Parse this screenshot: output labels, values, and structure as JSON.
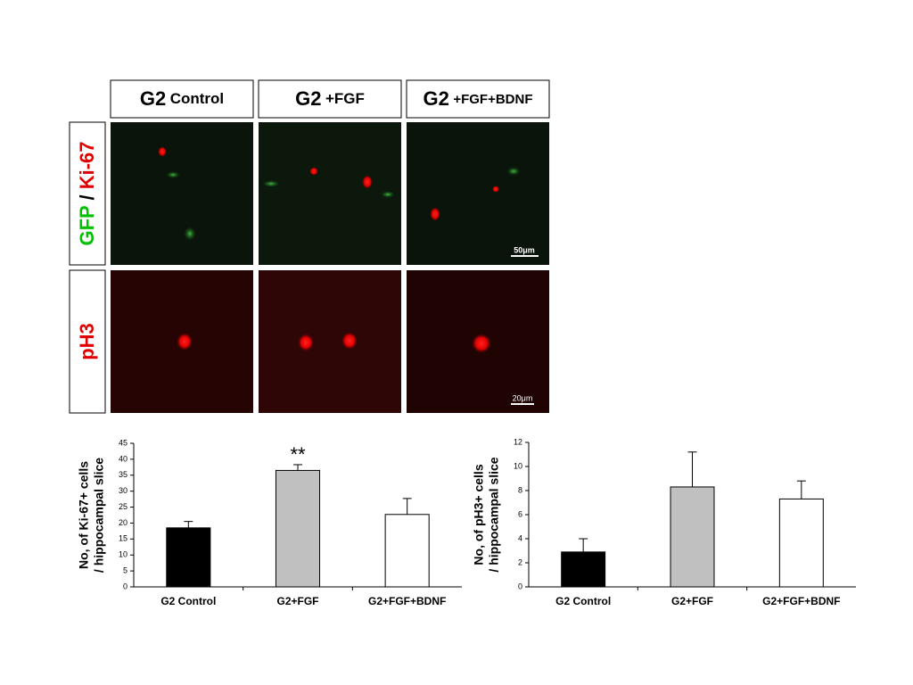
{
  "figure": {
    "columns": [
      [
        "G2",
        "Control"
      ],
      [
        "G2",
        "+FGF"
      ],
      [
        "G2",
        "+FGF+BDNF"
      ]
    ],
    "rows": [
      [
        "GFP",
        "/",
        "Ki-67"
      ],
      [
        "pH3"
      ]
    ],
    "scale_bars": [
      "50μm",
      "20μm"
    ]
  },
  "chart_data": [
    {
      "type": "bar",
      "ylabel": [
        "No, of Ki-67+ cells",
        "/ hippocampal slice"
      ],
      "categories": [
        "G2 Control",
        "G2+FGF",
        "G2+FGF+BDNF"
      ],
      "values": [
        18.5,
        36.5,
        22.7
      ],
      "errors": [
        2,
        1.8,
        5
      ],
      "colors": [
        "#000000",
        "#c0c0c0",
        "#ffffff"
      ],
      "annotations": [
        {
          "text": "**",
          "category": "G2+FGF"
        }
      ],
      "ylim": [
        0,
        45
      ],
      "yticks": [
        0,
        5,
        10,
        15,
        20,
        25,
        30,
        35,
        40,
        45
      ]
    },
    {
      "type": "bar",
      "ylabel": [
        "No, of pH3+ cells",
        "/ hippocampal slice"
      ],
      "categories": [
        "G2 Control",
        "G2+FGF",
        "G2+FGF+BDNF"
      ],
      "values": [
        2.9,
        8.3,
        7.3
      ],
      "errors": [
        1.1,
        2.9,
        1.5
      ],
      "colors": [
        "#000000",
        "#c0c0c0",
        "#ffffff"
      ],
      "ylim": [
        0,
        12
      ],
      "yticks": [
        0,
        2,
        4,
        6,
        8,
        10,
        12
      ]
    }
  ]
}
